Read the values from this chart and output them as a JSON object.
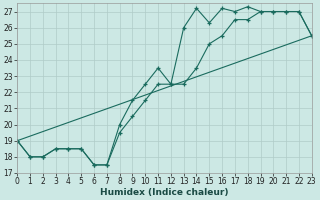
{
  "xlabel": "Humidex (Indice chaleur)",
  "bg_color": "#cce8e4",
  "line_color": "#1a6b5e",
  "xlim": [
    0,
    23
  ],
  "ylim": [
    17,
    27.5
  ],
  "yticks": [
    17,
    18,
    19,
    20,
    21,
    22,
    23,
    24,
    25,
    26,
    27
  ],
  "xticks": [
    0,
    1,
    2,
    3,
    4,
    5,
    6,
    7,
    8,
    9,
    10,
    11,
    12,
    13,
    14,
    15,
    16,
    17,
    18,
    19,
    20,
    21,
    22,
    23
  ],
  "line1_x": [
    0,
    1,
    2,
    3,
    4,
    5,
    6,
    7,
    8,
    9,
    10,
    11,
    12,
    13,
    14,
    15,
    16,
    17,
    18,
    19,
    20,
    21,
    22,
    23
  ],
  "line1_y": [
    19,
    18,
    18,
    18.5,
    18.5,
    18.5,
    17.5,
    17.5,
    20,
    21.5,
    22.5,
    23.5,
    22.5,
    26,
    27.2,
    26.3,
    27.2,
    27,
    27.3,
    27,
    27,
    27,
    27,
    25.5
  ],
  "line2_x": [
    0,
    1,
    2,
    3,
    4,
    5,
    6,
    7,
    8,
    9,
    10,
    11,
    12,
    13,
    14,
    15,
    16,
    17,
    18,
    19,
    20,
    21,
    22,
    23
  ],
  "line2_y": [
    19,
    18,
    18,
    18.5,
    18.5,
    18.5,
    17.5,
    17.5,
    19.5,
    20.5,
    21.5,
    22.5,
    22.5,
    22.5,
    23.5,
    25.0,
    25.5,
    26.5,
    26.5,
    27,
    27,
    27,
    27,
    25.5
  ],
  "line3_x": [
    0,
    23
  ],
  "line3_y": [
    19,
    25.5
  ],
  "grid_color": "#b0ccc8",
  "tick_fontsize": 5.5,
  "xlabel_fontsize": 6.5
}
